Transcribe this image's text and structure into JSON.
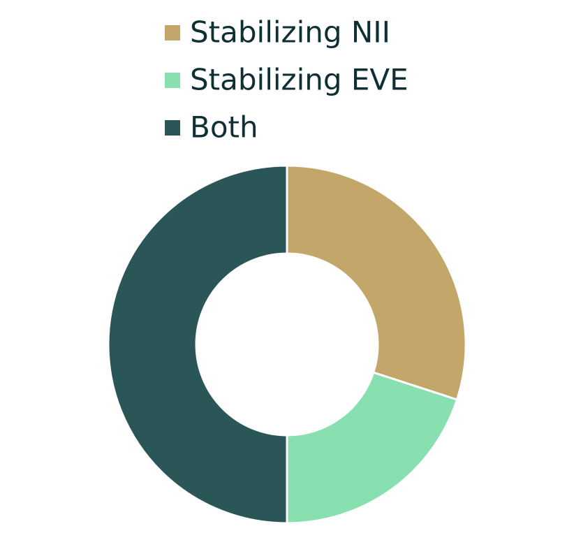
{
  "chart_data": {
    "type": "donut",
    "series": [
      {
        "name": "Stabilizing NII",
        "color": "#c2a66a",
        "values": [
          30
        ]
      },
      {
        "name": "Stabilizing EVE",
        "color": "#88e0b0",
        "values": [
          20
        ]
      },
      {
        "name": "Both",
        "color": "#2a5657",
        "values": [
          50
        ]
      }
    ],
    "legend": "top"
  }
}
